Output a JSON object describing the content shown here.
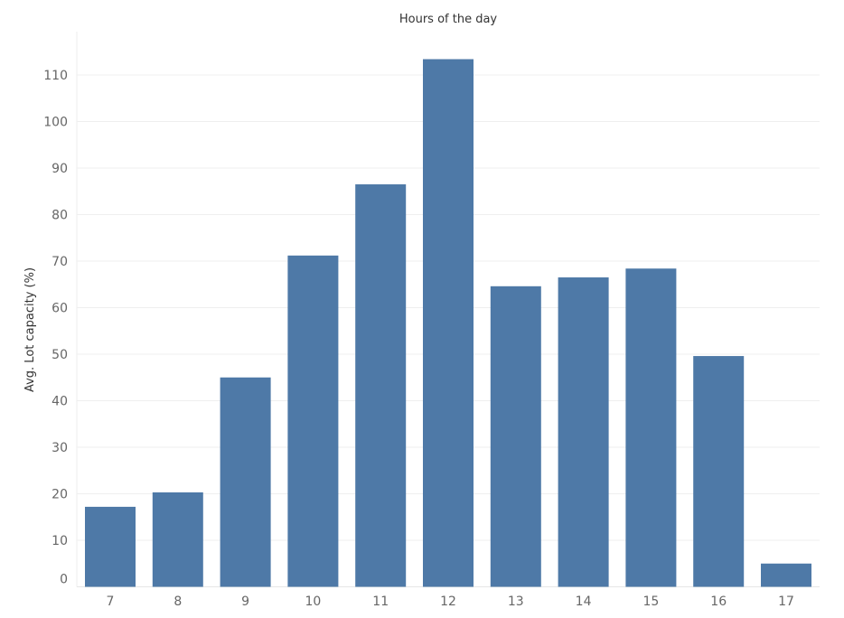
{
  "chart_data": {
    "type": "bar",
    "title": "Hours of the day",
    "xlabel": "",
    "ylabel": "Avg. Lot capacity (%)",
    "categories": [
      "7",
      "8",
      "9",
      "10",
      "11",
      "12",
      "13",
      "14",
      "15",
      "16",
      "17"
    ],
    "values": [
      17.2,
      20.3,
      45.0,
      71.2,
      86.5,
      113.4,
      64.6,
      66.5,
      68.4,
      49.6,
      5.0
    ],
    "ylim": [
      0,
      118
    ],
    "yticks": [
      0,
      10,
      20,
      30,
      40,
      50,
      60,
      70,
      80,
      90,
      100,
      110
    ],
    "grid": true,
    "bar_color": "#4e79a7"
  }
}
